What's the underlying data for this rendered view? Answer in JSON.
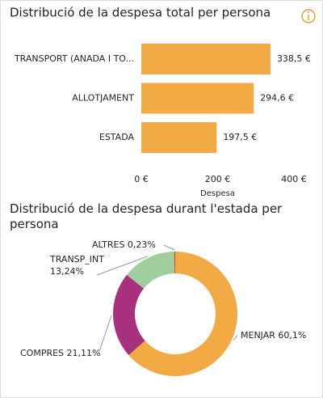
{
  "chart_data": [
    {
      "type": "hbar",
      "title": "Distribució de la despesa total per persona",
      "categories": [
        "TRANSPORT (ANADA I TO...",
        "ALLOTJAMENT",
        "ESTADA"
      ],
      "values": [
        338.5,
        294.6,
        197.5
      ],
      "value_labels": [
        "338,5 €",
        "294,6 €",
        "197,5 €"
      ],
      "color": "#f2aa45",
      "xlim": [
        0,
        400
      ],
      "xticks": [
        {
          "value": 0,
          "label": "0 €"
        },
        {
          "value": 200,
          "label": "200 €"
        },
        {
          "value": 400,
          "label": "400 €"
        }
      ],
      "xlabel": "Despesa"
    },
    {
      "type": "donut",
      "title": "Distribució de la despesa durant l'estada per persona",
      "categories": [
        "MENJAR",
        "COMPRES",
        "TRANSP_INT",
        "ALTRES"
      ],
      "values": [
        60.1,
        21.11,
        13.24,
        0.23
      ],
      "value_labels": [
        "60,1%",
        "21,11%",
        "13,24%",
        "0,23%"
      ],
      "colors": [
        "#f2aa45",
        "#a8307e",
        "#9fcd9b",
        "#c0441e"
      ]
    }
  ]
}
